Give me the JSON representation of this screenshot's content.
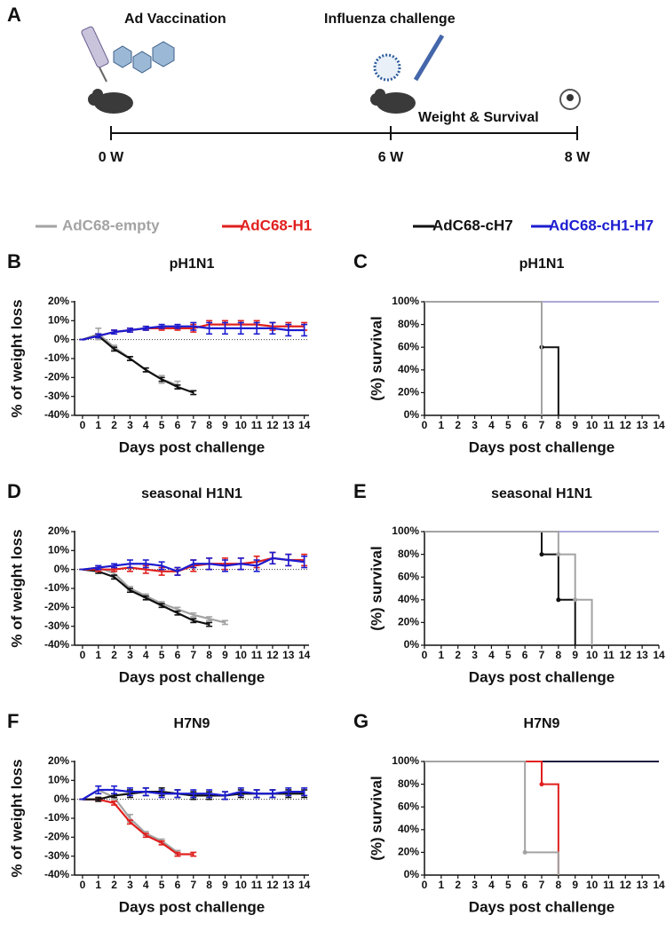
{
  "panel_a": {
    "panel": "A",
    "events": [
      "Ad Vaccination",
      "Influenza challenge"
    ],
    "readout": "Weight & Survival",
    "ticks": [
      "0 W",
      "6 W",
      "8 W"
    ]
  },
  "chart_data": [
    {
      "type": "line",
      "panel": "B",
      "title": "pH1N1",
      "xlabel": "Days post challenge",
      "ylabel": "% of weight loss",
      "x": [
        0,
        1,
        2,
        3,
        4,
        5,
        6,
        7,
        8,
        9,
        10,
        11,
        12,
        13,
        14
      ],
      "xlim": [
        -0.5,
        14.3
      ],
      "xticks": [
        0,
        1,
        2,
        3,
        4,
        5,
        6,
        7,
        8,
        9,
        10,
        11,
        12,
        13,
        14
      ],
      "ylim": [
        -40,
        20
      ],
      "yticks": [
        {
          "value": -40,
          "label": "-40%"
        },
        {
          "value": -30,
          "label": "-30%"
        },
        {
          "value": -20,
          "label": "-20%"
        },
        {
          "value": -10,
          "label": "-10%"
        },
        {
          "value": 0,
          "label": "0%"
        },
        {
          "value": 10,
          "label": "10%"
        },
        {
          "value": 20,
          "label": "20%"
        }
      ],
      "zero_line": true,
      "series": [
        {
          "name": "AdC68-empty",
          "color": "#a3a3a3",
          "values": [
            0,
            3,
            -4,
            -10,
            -16,
            -21,
            -24,
            null,
            null,
            null,
            null,
            null,
            null,
            null,
            null
          ],
          "errors": [
            0,
            3,
            1,
            1,
            1,
            2,
            2,
            null,
            null,
            null,
            null,
            null,
            null,
            null,
            null
          ]
        },
        {
          "name": "AdC68-H1",
          "color": "#e0201e",
          "values": [
            0,
            2,
            4,
            5,
            6,
            6,
            6,
            6,
            8,
            8,
            8,
            8,
            7,
            7,
            7
          ],
          "errors": [
            0,
            1,
            1,
            1,
            1,
            1,
            1,
            2,
            2,
            2,
            2,
            2,
            2,
            2,
            2
          ]
        },
        {
          "name": "AdC68-cH7",
          "color": "#111111",
          "values": [
            0,
            2,
            -5,
            -10,
            -16,
            -21,
            -25,
            -28,
            null,
            null,
            null,
            null,
            null,
            null,
            null
          ],
          "errors": [
            0,
            1,
            1,
            1,
            1,
            1,
            1,
            1,
            null,
            null,
            null,
            null,
            null,
            null,
            null
          ]
        },
        {
          "name": "AdC68-cH1-H7",
          "color": "#1c1cd0",
          "values": [
            0,
            2,
            4,
            5,
            6,
            7,
            7,
            7,
            6,
            6,
            6,
            6,
            6,
            5,
            5
          ],
          "errors": [
            0,
            1,
            1,
            1,
            1,
            1,
            1,
            2,
            3,
            3,
            3,
            3,
            3,
            3,
            3
          ]
        }
      ]
    },
    {
      "type": "step",
      "panel": "C",
      "title": "pH1N1",
      "xlabel": "Days post challenge",
      "ylabel": "(%)  survival",
      "x": [
        0,
        1,
        2,
        3,
        4,
        5,
        6,
        7,
        8,
        9,
        10,
        11,
        12,
        13,
        14
      ],
      "xlim": [
        0,
        14
      ],
      "xticks": [
        0,
        1,
        2,
        3,
        4,
        5,
        6,
        7,
        8,
        9,
        10,
        11,
        12,
        13,
        14
      ],
      "ylim": [
        0,
        100
      ],
      "yticks": [
        {
          "value": 0,
          "label": "0%"
        },
        {
          "value": 20,
          "label": "20%"
        },
        {
          "value": 40,
          "label": "40%"
        },
        {
          "value": 60,
          "label": "60%"
        },
        {
          "value": 80,
          "label": "80%"
        },
        {
          "value": 100,
          "label": "100%"
        }
      ],
      "series": [
        {
          "color": "#c2285c",
          "values": [
            100,
            100,
            100,
            100,
            100,
            100,
            100,
            100,
            100,
            100,
            100,
            100,
            100,
            100,
            100
          ]
        },
        {
          "color": "#a9a8dc",
          "values": [
            100,
            100,
            100,
            100,
            100,
            100,
            100,
            100,
            100,
            100,
            100,
            100,
            100,
            100,
            100
          ]
        },
        {
          "color": "#111111",
          "values": [
            100,
            100,
            100,
            100,
            100,
            100,
            100,
            60,
            0,
            null,
            null,
            null,
            null,
            null,
            null
          ]
        },
        {
          "color": "#a3a3a3",
          "values": [
            100,
            100,
            100,
            100,
            100,
            100,
            100,
            0,
            null,
            null,
            null,
            null,
            null,
            null,
            null
          ]
        }
      ]
    },
    {
      "type": "line",
      "panel": "D",
      "title": "seasonal H1N1",
      "xlabel": "Days post challenge",
      "ylabel": "% of weight loss",
      "x": [
        0,
        1,
        2,
        3,
        4,
        5,
        6,
        7,
        8,
        9,
        10,
        11,
        12,
        13,
        14
      ],
      "xlim": [
        -0.5,
        14.3
      ],
      "xticks": [
        0,
        1,
        2,
        3,
        4,
        5,
        6,
        7,
        8,
        9,
        10,
        11,
        12,
        13,
        14
      ],
      "ylim": [
        -40,
        20
      ],
      "yticks": [
        {
          "value": -40,
          "label": "-40%"
        },
        {
          "value": -30,
          "label": "-30%"
        },
        {
          "value": -20,
          "label": "-20%"
        },
        {
          "value": -10,
          "label": "-10%"
        },
        {
          "value": 0,
          "label": "0%"
        },
        {
          "value": 10,
          "label": "10%"
        },
        {
          "value": 20,
          "label": "20%"
        }
      ],
      "zero_line": true,
      "series": [
        {
          "color": "#a3a3a3",
          "values": [
            0,
            1,
            -2,
            -10,
            -14,
            -18,
            -21,
            -24,
            -26,
            -28,
            null,
            null,
            null,
            null,
            null
          ],
          "errors": [
            0,
            1,
            1,
            1,
            1,
            1,
            1,
            1,
            1,
            1,
            null,
            null,
            null,
            null,
            null
          ]
        },
        {
          "color": "#111111",
          "values": [
            0,
            -1,
            -4,
            -11,
            -15,
            -19,
            -23,
            -27,
            -29,
            null,
            null,
            null,
            null,
            null,
            null
          ],
          "errors": [
            0,
            1,
            1,
            1,
            1,
            1,
            1,
            1,
            1,
            null,
            null,
            null,
            null,
            null,
            null
          ]
        },
        {
          "color": "#e0201e",
          "values": [
            0,
            0,
            0,
            1,
            0,
            -1,
            -1,
            2,
            3,
            3,
            3,
            4,
            6,
            5,
            5
          ],
          "errors": [
            0,
            1,
            1,
            2,
            2,
            2,
            2,
            3,
            3,
            3,
            3,
            3,
            3,
            3,
            3
          ]
        },
        {
          "color": "#1c1cd0",
          "values": [
            0,
            1,
            2,
            3,
            3,
            2,
            -1,
            3,
            3,
            2,
            3,
            2,
            6,
            5,
            4
          ],
          "errors": [
            0,
            1,
            1,
            2,
            2,
            2,
            2,
            2,
            3,
            3,
            3,
            3,
            3,
            3,
            3
          ]
        }
      ]
    },
    {
      "type": "step",
      "panel": "E",
      "title": "seasonal H1N1",
      "xlabel": "Days post challenge",
      "ylabel": "(%)  survival",
      "x": [
        0,
        1,
        2,
        3,
        4,
        5,
        6,
        7,
        8,
        9,
        10,
        11,
        12,
        13,
        14
      ],
      "xlim": [
        0,
        14
      ],
      "xticks": [
        0,
        1,
        2,
        3,
        4,
        5,
        6,
        7,
        8,
        9,
        10,
        11,
        12,
        13,
        14
      ],
      "ylim": [
        0,
        100
      ],
      "yticks": [
        {
          "value": 0,
          "label": "0%"
        },
        {
          "value": 20,
          "label": "20%"
        },
        {
          "value": 40,
          "label": "40%"
        },
        {
          "value": 60,
          "label": "60%"
        },
        {
          "value": 80,
          "label": "80%"
        },
        {
          "value": 100,
          "label": "100%"
        }
      ],
      "series": [
        {
          "color": "#c2285c",
          "values": [
            100,
            100,
            100,
            100,
            100,
            100,
            100,
            100,
            100,
            100,
            100,
            100,
            100,
            100,
            100
          ]
        },
        {
          "color": "#a9a8dc",
          "values": [
            100,
            100,
            100,
            100,
            100,
            100,
            100,
            100,
            100,
            100,
            100,
            100,
            100,
            100,
            100
          ]
        },
        {
          "color": "#111111",
          "values": [
            100,
            100,
            100,
            100,
            100,
            100,
            100,
            80,
            40,
            0,
            null,
            null,
            null,
            null,
            null
          ]
        },
        {
          "color": "#a3a3a3",
          "values": [
            100,
            100,
            100,
            100,
            100,
            100,
            100,
            100,
            80,
            40,
            0,
            null,
            null,
            null,
            null
          ]
        }
      ]
    },
    {
      "type": "line",
      "panel": "F",
      "title": "H7N9",
      "xlabel": "Days post challenge",
      "ylabel": "% of weight loss",
      "x": [
        0,
        1,
        2,
        3,
        4,
        5,
        6,
        7,
        8,
        9,
        10,
        11,
        12,
        13,
        14
      ],
      "xlim": [
        -0.5,
        14.3
      ],
      "xticks": [
        0,
        1,
        2,
        3,
        4,
        5,
        6,
        7,
        8,
        9,
        10,
        11,
        12,
        13,
        14
      ],
      "ylim": [
        -40,
        20
      ],
      "yticks": [
        {
          "value": -40,
          "label": "-40%"
        },
        {
          "value": -30,
          "label": "-30%"
        },
        {
          "value": -20,
          "label": "-20%"
        },
        {
          "value": -10,
          "label": "-10%"
        },
        {
          "value": 0,
          "label": "0%"
        },
        {
          "value": 10,
          "label": "10%"
        },
        {
          "value": 20,
          "label": "20%"
        }
      ],
      "zero_line": true,
      "series": [
        {
          "color": "#a3a3a3",
          "values": [
            0,
            5,
            1,
            -10,
            -18,
            -22,
            -28,
            null,
            null,
            null,
            null,
            null,
            null,
            null,
            null
          ],
          "errors": [
            0,
            2,
            1,
            2,
            1,
            1,
            1,
            null,
            null,
            null,
            null,
            null,
            null,
            null,
            null
          ]
        },
        {
          "color": "#e0201e",
          "values": [
            0,
            0,
            -2,
            -12,
            -19,
            -23,
            -29,
            -29,
            null,
            null,
            null,
            null,
            null,
            null,
            null
          ],
          "errors": [
            0,
            1,
            1,
            1,
            1,
            1,
            1,
            1,
            null,
            null,
            null,
            null,
            null,
            null,
            null
          ]
        },
        {
          "color": "#111111",
          "values": [
            0,
            0,
            2,
            3,
            4,
            4,
            3,
            2,
            2,
            2,
            3,
            3,
            3,
            3,
            3
          ],
          "errors": [
            0,
            1,
            1,
            2,
            2,
            2,
            2,
            2,
            2,
            2,
            2,
            2,
            2,
            2,
            2
          ]
        },
        {
          "color": "#1c1cd0",
          "values": [
            0,
            5,
            5,
            4,
            4,
            3,
            3,
            3,
            3,
            2,
            4,
            3,
            3,
            4,
            4
          ],
          "errors": [
            0,
            2,
            2,
            2,
            2,
            2,
            2,
            2,
            2,
            2,
            2,
            2,
            2,
            2,
            2
          ]
        }
      ]
    },
    {
      "type": "step",
      "panel": "G",
      "title": "H7N9",
      "xlabel": "Days post challenge",
      "ylabel": "(%)  survival",
      "x": [
        0,
        1,
        2,
        3,
        4,
        5,
        6,
        7,
        8,
        9,
        10,
        11,
        12,
        13,
        14
      ],
      "xlim": [
        0,
        14
      ],
      "xticks": [
        0,
        1,
        2,
        3,
        4,
        5,
        6,
        7,
        8,
        9,
        10,
        11,
        12,
        13,
        14
      ],
      "ylim": [
        0,
        100
      ],
      "yticks": [
        {
          "value": 0,
          "label": "0%"
        },
        {
          "value": 20,
          "label": "20%"
        },
        {
          "value": 40,
          "label": "40%"
        },
        {
          "value": 60,
          "label": "60%"
        },
        {
          "value": 80,
          "label": "80%"
        },
        {
          "value": 100,
          "label": "100%"
        }
      ],
      "series": [
        {
          "color": "#a9a8dc",
          "values": [
            100,
            100,
            100,
            100,
            100,
            100,
            100,
            100,
            100,
            100,
            100,
            100,
            100,
            100,
            100
          ]
        },
        {
          "color": "#1a1a40",
          "values": [
            100,
            100,
            100,
            100,
            100,
            100,
            100,
            100,
            100,
            100,
            100,
            100,
            100,
            100,
            100
          ]
        },
        {
          "color": "#e0201e",
          "values": [
            100,
            100,
            100,
            100,
            100,
            100,
            100,
            80,
            0,
            null,
            null,
            null,
            null,
            null,
            null
          ]
        },
        {
          "color": "#a3a3a3",
          "values": [
            100,
            100,
            100,
            100,
            100,
            100,
            20,
            20,
            0,
            null,
            null,
            null,
            null,
            null,
            null
          ]
        }
      ]
    }
  ]
}
